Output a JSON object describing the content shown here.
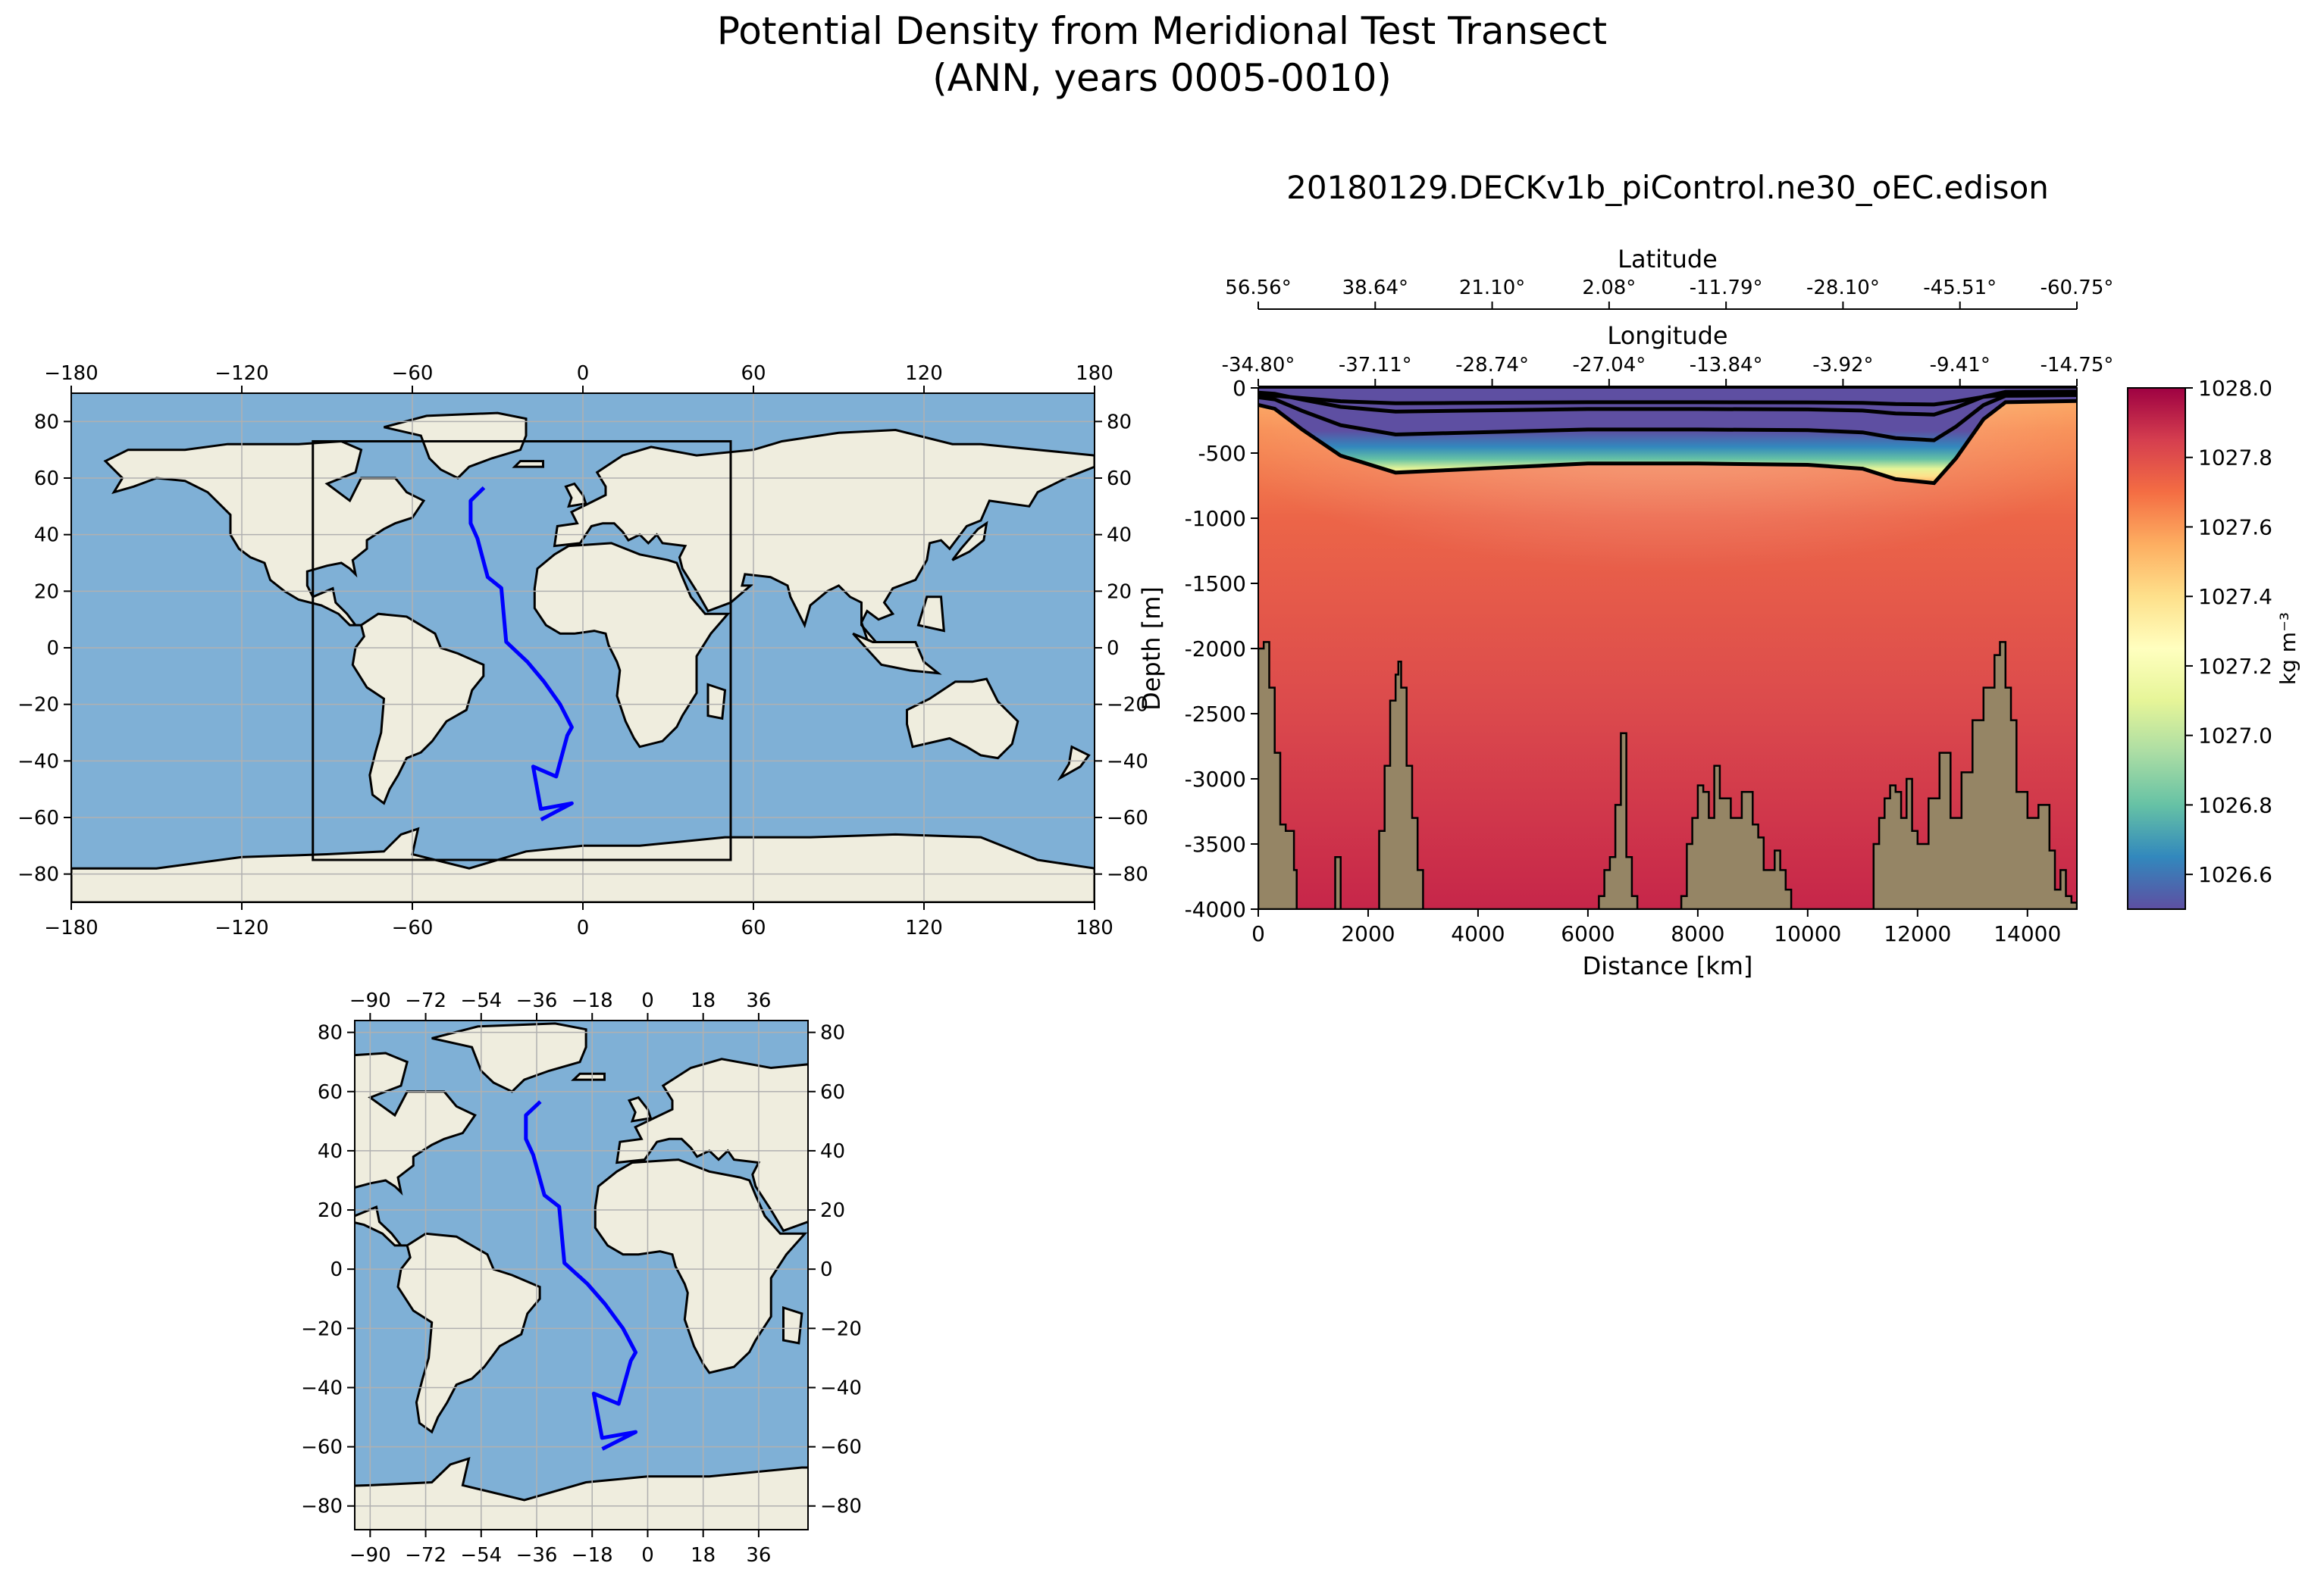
{
  "figure": {
    "title_line1": "Potential Density from Meridional Test Transect",
    "title_line2": "(ANN, years 0005-0010)"
  },
  "colors": {
    "ocean": "#7fb0d6",
    "land": "#efedde",
    "transect": "#0000ff",
    "bathymetry": "#958565",
    "grid": "#b0b0b0"
  },
  "global_map": {
    "xticks": [
      "−180",
      "−120",
      "−60",
      "0",
      "60",
      "120",
      "180"
    ],
    "yticks": [
      "80",
      "60",
      "40",
      "20",
      "0",
      "−20",
      "−40",
      "−60",
      "−80"
    ],
    "xlim": [
      -180,
      180
    ],
    "ylim": [
      -90,
      90
    ],
    "inset_box": {
      "lon": [
        -95,
        52
      ],
      "lat": [
        -75,
        73
      ]
    }
  },
  "regional_map": {
    "xticks": [
      "−90",
      "−72",
      "−54",
      "−36",
      "−18",
      "0",
      "18",
      "36"
    ],
    "yticks": [
      "80",
      "60",
      "40",
      "20",
      "0",
      "−20",
      "−40",
      "−60",
      "−80"
    ],
    "xlim": [
      -95,
      52
    ],
    "ylim": [
      -88,
      84
    ]
  },
  "transect_path": {
    "lon": [
      -34.8,
      -39.5,
      -39.5,
      -37.1,
      -33.5,
      -28.7,
      -27.0,
      -19.5,
      -13.8,
      -8.0,
      -3.9,
      -5.5,
      -9.4,
      -17.5,
      -14.8,
      -3.9,
      -14.75
    ],
    "lat": [
      56.6,
      52.0,
      44.0,
      38.6,
      25.0,
      21.1,
      2.1,
      -5.0,
      -11.8,
      -20.0,
      -28.1,
      -31.0,
      -45.5,
      -42.0,
      -57.0,
      -55.0,
      -60.75
    ]
  },
  "section": {
    "title": "20180129.DECKv1b_piControl.ne30_oEC.edison",
    "xlabel": "Distance [km]",
    "ylabel": "Depth [m]",
    "lat_axis_label": "Latitude",
    "lon_axis_label": "Longitude",
    "latitude_ticks": [
      "56.56°",
      "38.64°",
      "21.10°",
      "2.08°",
      "-11.79°",
      "-28.10°",
      "-45.51°",
      "-60.75°"
    ],
    "longitude_ticks": [
      "-34.80°",
      "-37.11°",
      "-28.74°",
      "-27.04°",
      "-13.84°",
      "-3.92°",
      "-9.41°",
      "-14.75°"
    ],
    "xticks": [
      "0",
      "2000",
      "4000",
      "6000",
      "8000",
      "10000",
      "12000",
      "14000"
    ],
    "yticks": [
      "0",
      "-500",
      "-1000",
      "-1500",
      "-2000",
      "-2500",
      "-3000",
      "-3500",
      "-4000"
    ]
  },
  "colorbar": {
    "label": "kg m⁻³",
    "ticks": [
      "1028.0",
      "1027.8",
      "1027.6",
      "1027.4",
      "1027.2",
      "1027.0",
      "1026.8",
      "1026.6"
    ],
    "range": [
      1026.5,
      1028.0
    ]
  },
  "chart_data": {
    "type": "heatmap",
    "title": "20180129.DECKv1b_piControl.ne30_oEC.edison",
    "xlabel": "Distance [km]",
    "ylabel": "Depth [m]",
    "xlim": [
      0,
      14900
    ],
    "ylim": [
      -4000,
      0
    ],
    "colorbar_range": [
      1026.5,
      1028.0
    ],
    "colormap": "Spectral_r",
    "pycnocline_depth_m": {
      "x": [
        0,
        300,
        800,
        1500,
        2500,
        3500,
        4500,
        6000,
        8000,
        10000,
        11000,
        11600,
        12300,
        12700,
        13200,
        13600,
        14900
      ],
      "values": [
        -130,
        -160,
        -320,
        -520,
        -650,
        -630,
        -610,
        -580,
        -580,
        -590,
        -620,
        -700,
        -730,
        -540,
        -240,
        -110,
        -100
      ]
    },
    "bathymetry_depth_m": {
      "x": [
        0,
        100,
        200,
        300,
        400,
        500,
        650,
        700,
        1300,
        1400,
        1500,
        2100,
        2200,
        2300,
        2400,
        2500,
        2550,
        2600,
        2700,
        2800,
        2900,
        3000,
        3100,
        6100,
        6200,
        6300,
        6400,
        6500,
        6600,
        6700,
        6800,
        6900,
        7500,
        7700,
        7800,
        7900,
        8000,
        8100,
        8200,
        8300,
        8400,
        8600,
        8800,
        9000,
        9100,
        9200,
        9400,
        9500,
        9600,
        9700,
        10000,
        11100,
        11200,
        11300,
        11400,
        11500,
        11600,
        11700,
        11800,
        11900,
        12000,
        12200,
        12400,
        12600,
        12800,
        13000,
        13200,
        13400,
        13500,
        13600,
        13700,
        13800,
        14000,
        14200,
        14400,
        14500,
        14600,
        14700,
        14800,
        14900
      ],
      "values": [
        -2000,
        -1950,
        -2300,
        -2800,
        -3350,
        -3400,
        -3700,
        -4000,
        -4000,
        -3600,
        -4000,
        -4000,
        -3400,
        -2900,
        -2400,
        -2200,
        -2100,
        -2300,
        -2900,
        -3300,
        -3700,
        -4000,
        -4000,
        -4000,
        -3900,
        -3700,
        -3600,
        -3200,
        -2650,
        -3600,
        -3900,
        -4000,
        -4000,
        -3900,
        -3500,
        -3300,
        -3050,
        -3100,
        -3300,
        -2900,
        -3150,
        -3300,
        -3100,
        -3350,
        -3450,
        -3700,
        -3550,
        -3700,
        -3850,
        -4000,
        -4000,
        -4000,
        -3500,
        -3300,
        -3150,
        -3050,
        -3100,
        -3300,
        -3000,
        -3400,
        -3500,
        -3150,
        -2800,
        -3300,
        -2950,
        -2550,
        -2300,
        -2050,
        -1950,
        -2300,
        -2550,
        -3100,
        -3300,
        -3200,
        -3550,
        -3850,
        -3700,
        -3900,
        -3950,
        -4000
      ]
    }
  }
}
